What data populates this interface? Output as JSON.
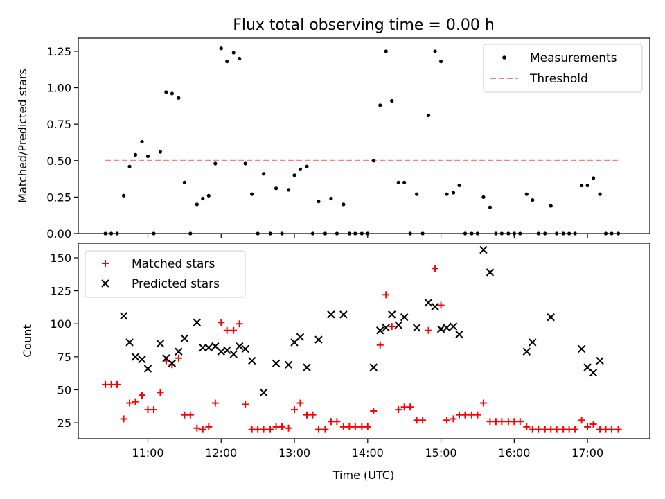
{
  "chart_data": [
    {
      "type": "scatter",
      "title": "Flux total observing time = 0.00 h",
      "xlabel": "",
      "ylabel": "Matched/Predicted stars",
      "xlim_hours": [
        10.05,
        17.85
      ],
      "ylim": [
        0,
        1.34
      ],
      "yticks": [
        0,
        0.25,
        0.5,
        0.75,
        1.0,
        1.25
      ],
      "ytick_labels": [
        "0.00",
        "0.25",
        "0.50",
        "0.75",
        "1.00",
        "1.25"
      ],
      "grid": false,
      "legend_position": "top-right",
      "series": [
        {
          "name": "Measurements",
          "marker": "dot",
          "color": "#000000",
          "x": [
            10.42,
            10.5,
            10.58,
            10.67,
            10.75,
            10.83,
            10.92,
            11.0,
            11.08,
            11.17,
            11.25,
            11.33,
            11.42,
            11.5,
            11.58,
            11.67,
            11.75,
            11.83,
            11.92,
            12.0,
            12.08,
            12.17,
            12.25,
            12.33,
            12.42,
            12.5,
            12.58,
            12.67,
            12.75,
            12.83,
            12.92,
            13.0,
            13.08,
            13.17,
            13.25,
            13.33,
            13.42,
            13.5,
            13.58,
            13.67,
            13.75,
            13.83,
            13.92,
            14.0,
            14.08,
            14.17,
            14.25,
            14.33,
            14.42,
            14.5,
            14.58,
            14.67,
            14.75,
            14.83,
            14.92,
            15.0,
            15.08,
            15.17,
            15.25,
            15.33,
            15.42,
            15.5,
            15.58,
            15.67,
            15.75,
            15.83,
            15.92,
            16.0,
            16.08,
            16.17,
            16.25,
            16.33,
            16.42,
            16.5,
            16.58,
            16.67,
            16.75,
            16.83,
            16.92,
            17.0,
            17.08,
            17.17,
            17.25,
            17.33,
            17.42
          ],
          "y": [
            0,
            0,
            0,
            0.26,
            0.46,
            0.54,
            0.63,
            0.53,
            0,
            0.56,
            0.97,
            0.96,
            0.93,
            0.35,
            0,
            0.2,
            0.24,
            0.26,
            0.48,
            1.27,
            1.18,
            1.24,
            1.2,
            0.48,
            0.27,
            0,
            0.41,
            0,
            0.31,
            0,
            0.3,
            0.4,
            0.44,
            0.46,
            0,
            0.22,
            0,
            0.24,
            0,
            0.2,
            0,
            0,
            0,
            0,
            0.5,
            0.88,
            1.25,
            0.91,
            0.35,
            0.35,
            0,
            0.27,
            0,
            0.81,
            1.25,
            1.18,
            0.27,
            0.28,
            0.33,
            0,
            0,
            0,
            0.25,
            0.18,
            0,
            0,
            0,
            0,
            0,
            0.27,
            0.23,
            0,
            0,
            0.19,
            0,
            0,
            0,
            0,
            0.33,
            0.33,
            0.38,
            0.27,
            0,
            0,
            0
          ]
        },
        {
          "name": "Threshold",
          "line_style": "dashed",
          "color": "#ff7f7f",
          "x": [
            10.42,
            17.42
          ],
          "y": [
            0.5,
            0.5
          ]
        }
      ]
    },
    {
      "type": "scatter",
      "title": "",
      "xlabel": "Time (UTC)",
      "ylabel": "Count",
      "xlim_hours": [
        10.05,
        17.85
      ],
      "xticks_hours": [
        11,
        12,
        13,
        14,
        15,
        16,
        17
      ],
      "xtick_labels": [
        "11:00",
        "12:00",
        "13:00",
        "14:00",
        "15:00",
        "16:00",
        "17:00"
      ],
      "ylim": [
        13,
        161
      ],
      "yticks": [
        25,
        50,
        75,
        100,
        125,
        150
      ],
      "ytick_labels": [
        "25",
        "50",
        "75",
        "100",
        "125",
        "150"
      ],
      "grid": false,
      "legend_position": "top-left",
      "series": [
        {
          "name": "Matched stars",
          "marker": "plus",
          "color": "#ff0000",
          "x": [
            10.42,
            10.5,
            10.58,
            10.67,
            10.75,
            10.83,
            10.92,
            11.0,
            11.08,
            11.17,
            11.25,
            11.33,
            11.42,
            11.5,
            11.58,
            11.67,
            11.75,
            11.83,
            11.92,
            12.0,
            12.08,
            12.17,
            12.25,
            12.33,
            12.42,
            12.5,
            12.58,
            12.67,
            12.75,
            12.83,
            12.92,
            13.0,
            13.08,
            13.17,
            13.25,
            13.33,
            13.42,
            13.5,
            13.58,
            13.67,
            13.75,
            13.83,
            13.92,
            14.0,
            14.08,
            14.17,
            14.25,
            14.33,
            14.42,
            14.5,
            14.58,
            14.67,
            14.75,
            14.83,
            14.92,
            15.0,
            15.08,
            15.17,
            15.25,
            15.33,
            15.42,
            15.5,
            15.58,
            15.67,
            15.75,
            15.83,
            15.92,
            16.0,
            16.08,
            16.17,
            16.25,
            16.33,
            16.42,
            16.5,
            16.58,
            16.67,
            16.75,
            16.83,
            16.92,
            17.0,
            17.08,
            17.17,
            17.25,
            17.33,
            17.42
          ],
          "y": [
            54,
            54,
            54,
            28,
            40,
            41,
            46,
            35,
            35,
            48,
            72,
            69,
            74,
            31,
            31,
            21,
            20,
            22,
            40,
            101,
            95,
            95,
            100,
            39,
            20,
            20,
            20,
            20,
            22,
            22,
            21,
            35,
            40,
            31,
            31,
            20,
            20,
            26,
            26,
            22,
            22,
            22,
            22,
            22,
            34,
            84,
            122,
            98,
            35,
            37,
            37,
            27,
            27,
            95,
            142,
            114,
            27,
            28,
            31,
            31,
            31,
            31,
            40,
            26,
            26,
            26,
            26,
            26,
            26,
            22,
            20,
            20,
            20,
            20,
            20,
            20,
            20,
            20,
            27,
            22,
            24,
            20,
            20,
            20,
            20
          ]
        },
        {
          "name": "Predicted stars",
          "marker": "x",
          "color": "#000000",
          "x": [
            10.67,
            10.75,
            10.83,
            10.92,
            11.0,
            11.17,
            11.25,
            11.33,
            11.42,
            11.5,
            11.67,
            11.75,
            11.83,
            11.92,
            12.0,
            12.08,
            12.17,
            12.25,
            12.33,
            12.42,
            12.58,
            12.75,
            12.92,
            13.0,
            13.08,
            13.17,
            13.33,
            13.5,
            13.67,
            14.08,
            14.17,
            14.25,
            14.33,
            14.42,
            14.5,
            14.67,
            14.83,
            14.92,
            15.0,
            15.08,
            15.17,
            15.25,
            15.58,
            15.67,
            16.17,
            16.25,
            16.5,
            16.92,
            17.0,
            17.08,
            17.17
          ],
          "y": [
            106,
            86,
            75,
            73,
            66,
            85,
            74,
            70,
            79,
            89,
            101,
            82,
            82,
            83,
            79,
            80,
            77,
            83,
            81,
            72,
            48,
            70,
            69,
            86,
            90,
            67,
            88,
            107,
            107,
            67,
            95,
            97,
            107,
            99,
            105,
            97,
            116,
            113,
            96,
            97,
            98,
            92,
            156,
            139,
            79,
            86,
            105,
            81,
            67,
            63,
            72
          ]
        }
      ]
    }
  ]
}
